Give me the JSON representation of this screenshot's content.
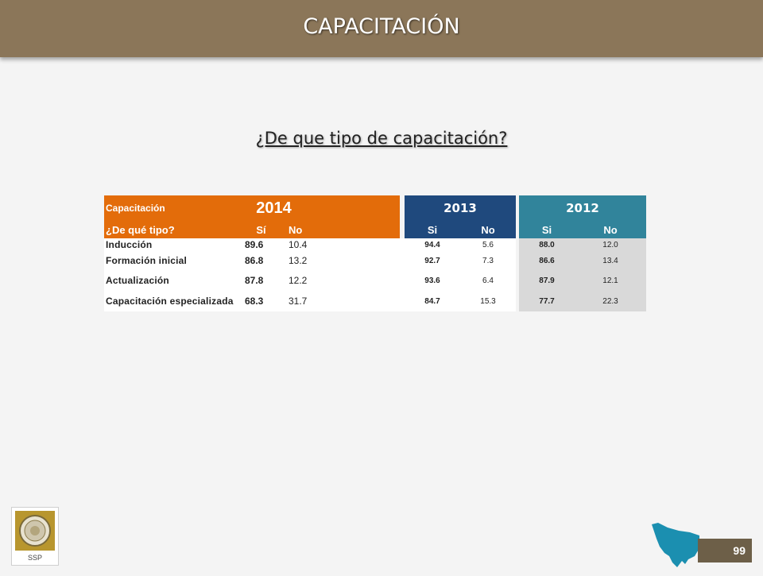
{
  "header": {
    "title": "CAPACITACIÓN"
  },
  "subtitle": "¿De que tipo de capacitación?",
  "table": {
    "label_row1": "Capacitación",
    "label_row2": "¿De qué tipo?",
    "years": [
      "2014",
      "2013",
      "2012"
    ],
    "col_2014": [
      "Sí",
      "No"
    ],
    "col_2013": [
      "Si",
      "No"
    ],
    "col_2012": [
      "Si",
      "No"
    ],
    "rows": [
      {
        "name": "Inducción",
        "y2014_si": "89.6",
        "y2014_no": "10.4",
        "y2013_si": "94.4",
        "y2013_no": "5.6",
        "y2012_si": "88.0",
        "y2012_no": "12.0"
      },
      {
        "name": "Formación inicial",
        "y2014_si": "86.8",
        "y2014_no": "13.2",
        "y2013_si": "92.7",
        "y2013_no": "7.3",
        "y2012_si": "86.6",
        "y2012_no": "13.4"
      },
      {
        "name": "Actualización",
        "y2014_si": "87.8",
        "y2014_no": "12.2",
        "y2013_si": "93.6",
        "y2013_no": "6.4",
        "y2012_si": "87.9",
        "y2012_no": "12.1"
      },
      {
        "name": "Capacitación especializada",
        "y2014_si": "68.3",
        "y2014_no": "31.7",
        "y2013_si": "84.7",
        "y2013_no": "15.3",
        "y2012_si": "77.7",
        "y2012_no": "22.3"
      }
    ]
  },
  "footer": {
    "logo_label": "SSP",
    "page_number": "99"
  },
  "colors": {
    "header_bar": "#8b7659",
    "orange": "#e36c0a",
    "navy": "#1f497d",
    "teal": "#31849b"
  }
}
